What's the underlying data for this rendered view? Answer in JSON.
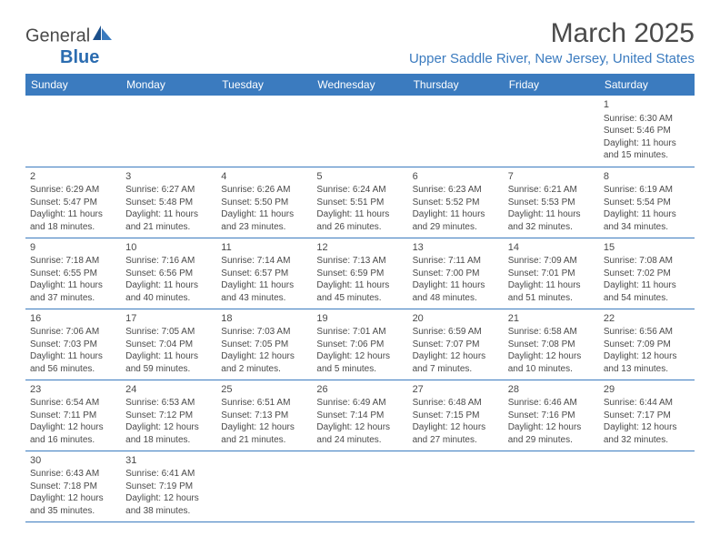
{
  "logo": {
    "part1": "General",
    "part2": "Blue"
  },
  "title": "March 2025",
  "location": "Upper Saddle River, New Jersey, United States",
  "colors": {
    "header_bg": "#3b7bbf",
    "header_text": "#ffffff",
    "border": "#3b7bbf",
    "text": "#4a4a4a",
    "location_text": "#3b7bbf"
  },
  "dayHeaders": [
    "Sunday",
    "Monday",
    "Tuesday",
    "Wednesday",
    "Thursday",
    "Friday",
    "Saturday"
  ],
  "weeks": [
    [
      null,
      null,
      null,
      null,
      null,
      null,
      {
        "d": "1",
        "sr": "Sunrise: 6:30 AM",
        "ss": "Sunset: 5:46 PM",
        "dl1": "Daylight: 11 hours",
        "dl2": "and 15 minutes."
      }
    ],
    [
      {
        "d": "2",
        "sr": "Sunrise: 6:29 AM",
        "ss": "Sunset: 5:47 PM",
        "dl1": "Daylight: 11 hours",
        "dl2": "and 18 minutes."
      },
      {
        "d": "3",
        "sr": "Sunrise: 6:27 AM",
        "ss": "Sunset: 5:48 PM",
        "dl1": "Daylight: 11 hours",
        "dl2": "and 21 minutes."
      },
      {
        "d": "4",
        "sr": "Sunrise: 6:26 AM",
        "ss": "Sunset: 5:50 PM",
        "dl1": "Daylight: 11 hours",
        "dl2": "and 23 minutes."
      },
      {
        "d": "5",
        "sr": "Sunrise: 6:24 AM",
        "ss": "Sunset: 5:51 PM",
        "dl1": "Daylight: 11 hours",
        "dl2": "and 26 minutes."
      },
      {
        "d": "6",
        "sr": "Sunrise: 6:23 AM",
        "ss": "Sunset: 5:52 PM",
        "dl1": "Daylight: 11 hours",
        "dl2": "and 29 minutes."
      },
      {
        "d": "7",
        "sr": "Sunrise: 6:21 AM",
        "ss": "Sunset: 5:53 PM",
        "dl1": "Daylight: 11 hours",
        "dl2": "and 32 minutes."
      },
      {
        "d": "8",
        "sr": "Sunrise: 6:19 AM",
        "ss": "Sunset: 5:54 PM",
        "dl1": "Daylight: 11 hours",
        "dl2": "and 34 minutes."
      }
    ],
    [
      {
        "d": "9",
        "sr": "Sunrise: 7:18 AM",
        "ss": "Sunset: 6:55 PM",
        "dl1": "Daylight: 11 hours",
        "dl2": "and 37 minutes."
      },
      {
        "d": "10",
        "sr": "Sunrise: 7:16 AM",
        "ss": "Sunset: 6:56 PM",
        "dl1": "Daylight: 11 hours",
        "dl2": "and 40 minutes."
      },
      {
        "d": "11",
        "sr": "Sunrise: 7:14 AM",
        "ss": "Sunset: 6:57 PM",
        "dl1": "Daylight: 11 hours",
        "dl2": "and 43 minutes."
      },
      {
        "d": "12",
        "sr": "Sunrise: 7:13 AM",
        "ss": "Sunset: 6:59 PM",
        "dl1": "Daylight: 11 hours",
        "dl2": "and 45 minutes."
      },
      {
        "d": "13",
        "sr": "Sunrise: 7:11 AM",
        "ss": "Sunset: 7:00 PM",
        "dl1": "Daylight: 11 hours",
        "dl2": "and 48 minutes."
      },
      {
        "d": "14",
        "sr": "Sunrise: 7:09 AM",
        "ss": "Sunset: 7:01 PM",
        "dl1": "Daylight: 11 hours",
        "dl2": "and 51 minutes."
      },
      {
        "d": "15",
        "sr": "Sunrise: 7:08 AM",
        "ss": "Sunset: 7:02 PM",
        "dl1": "Daylight: 11 hours",
        "dl2": "and 54 minutes."
      }
    ],
    [
      {
        "d": "16",
        "sr": "Sunrise: 7:06 AM",
        "ss": "Sunset: 7:03 PM",
        "dl1": "Daylight: 11 hours",
        "dl2": "and 56 minutes."
      },
      {
        "d": "17",
        "sr": "Sunrise: 7:05 AM",
        "ss": "Sunset: 7:04 PM",
        "dl1": "Daylight: 11 hours",
        "dl2": "and 59 minutes."
      },
      {
        "d": "18",
        "sr": "Sunrise: 7:03 AM",
        "ss": "Sunset: 7:05 PM",
        "dl1": "Daylight: 12 hours",
        "dl2": "and 2 minutes."
      },
      {
        "d": "19",
        "sr": "Sunrise: 7:01 AM",
        "ss": "Sunset: 7:06 PM",
        "dl1": "Daylight: 12 hours",
        "dl2": "and 5 minutes."
      },
      {
        "d": "20",
        "sr": "Sunrise: 6:59 AM",
        "ss": "Sunset: 7:07 PM",
        "dl1": "Daylight: 12 hours",
        "dl2": "and 7 minutes."
      },
      {
        "d": "21",
        "sr": "Sunrise: 6:58 AM",
        "ss": "Sunset: 7:08 PM",
        "dl1": "Daylight: 12 hours",
        "dl2": "and 10 minutes."
      },
      {
        "d": "22",
        "sr": "Sunrise: 6:56 AM",
        "ss": "Sunset: 7:09 PM",
        "dl1": "Daylight: 12 hours",
        "dl2": "and 13 minutes."
      }
    ],
    [
      {
        "d": "23",
        "sr": "Sunrise: 6:54 AM",
        "ss": "Sunset: 7:11 PM",
        "dl1": "Daylight: 12 hours",
        "dl2": "and 16 minutes."
      },
      {
        "d": "24",
        "sr": "Sunrise: 6:53 AM",
        "ss": "Sunset: 7:12 PM",
        "dl1": "Daylight: 12 hours",
        "dl2": "and 18 minutes."
      },
      {
        "d": "25",
        "sr": "Sunrise: 6:51 AM",
        "ss": "Sunset: 7:13 PM",
        "dl1": "Daylight: 12 hours",
        "dl2": "and 21 minutes."
      },
      {
        "d": "26",
        "sr": "Sunrise: 6:49 AM",
        "ss": "Sunset: 7:14 PM",
        "dl1": "Daylight: 12 hours",
        "dl2": "and 24 minutes."
      },
      {
        "d": "27",
        "sr": "Sunrise: 6:48 AM",
        "ss": "Sunset: 7:15 PM",
        "dl1": "Daylight: 12 hours",
        "dl2": "and 27 minutes."
      },
      {
        "d": "28",
        "sr": "Sunrise: 6:46 AM",
        "ss": "Sunset: 7:16 PM",
        "dl1": "Daylight: 12 hours",
        "dl2": "and 29 minutes."
      },
      {
        "d": "29",
        "sr": "Sunrise: 6:44 AM",
        "ss": "Sunset: 7:17 PM",
        "dl1": "Daylight: 12 hours",
        "dl2": "and 32 minutes."
      }
    ],
    [
      {
        "d": "30",
        "sr": "Sunrise: 6:43 AM",
        "ss": "Sunset: 7:18 PM",
        "dl1": "Daylight: 12 hours",
        "dl2": "and 35 minutes."
      },
      {
        "d": "31",
        "sr": "Sunrise: 6:41 AM",
        "ss": "Sunset: 7:19 PM",
        "dl1": "Daylight: 12 hours",
        "dl2": "and 38 minutes."
      },
      null,
      null,
      null,
      null,
      null
    ]
  ]
}
